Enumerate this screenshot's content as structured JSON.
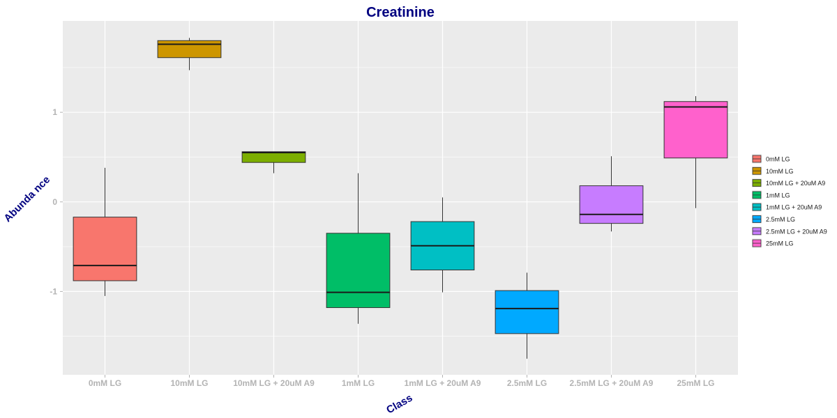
{
  "chart_data": {
    "type": "boxplot",
    "title": "Creatinine",
    "xlabel": "Class",
    "ylabel": "Abunda nce",
    "ylim": [
      -1.93,
      2.02
    ],
    "yticks": [
      -1,
      0,
      1
    ],
    "grid": true,
    "legend_position": "right",
    "categories": [
      "0mM LG",
      "10mM LG",
      "10mM LG + 20uM A9",
      "1mM LG",
      "1mM LG + 20uM A9",
      "2.5mM LG",
      "2.5mM LG + 20uM A9",
      "25mM LG"
    ],
    "series": [
      {
        "name": "0mM LG",
        "color": "#F8766D",
        "min": -1.05,
        "q1": -0.88,
        "median": -0.71,
        "q3": -0.17,
        "max": 0.38
      },
      {
        "name": "10mM LG",
        "color": "#CD9600",
        "min": 1.47,
        "q1": 1.61,
        "median": 1.76,
        "q3": 1.8,
        "max": 1.83
      },
      {
        "name": "10mM LG + 20uM A9",
        "color": "#7CAE00",
        "min": 0.32,
        "q1": 0.44,
        "median": 0.55,
        "q3": 0.56,
        "max": 0.56
      },
      {
        "name": "1mM LG",
        "color": "#00BE67",
        "min": -1.36,
        "q1": -1.18,
        "median": -1.01,
        "q3": -0.35,
        "max": 0.32
      },
      {
        "name": "1mM LG + 20uM A9",
        "color": "#00BFC4",
        "min": -1.01,
        "q1": -0.76,
        "median": -0.49,
        "q3": -0.22,
        "max": 0.05
      },
      {
        "name": "2.5mM LG",
        "color": "#00A9FF",
        "min": -1.75,
        "q1": -1.47,
        "median": -1.19,
        "q3": -0.99,
        "max": -0.79
      },
      {
        "name": "2.5mM LG + 20uM A9",
        "color": "#C77CFF",
        "min": -0.33,
        "q1": -0.24,
        "median": -0.14,
        "q3": 0.18,
        "max": 0.51
      },
      {
        "name": "25mM LG",
        "color": "#FF61CC",
        "min": -0.07,
        "q1": 0.49,
        "median": 1.06,
        "q3": 1.12,
        "max": 1.18
      }
    ]
  }
}
